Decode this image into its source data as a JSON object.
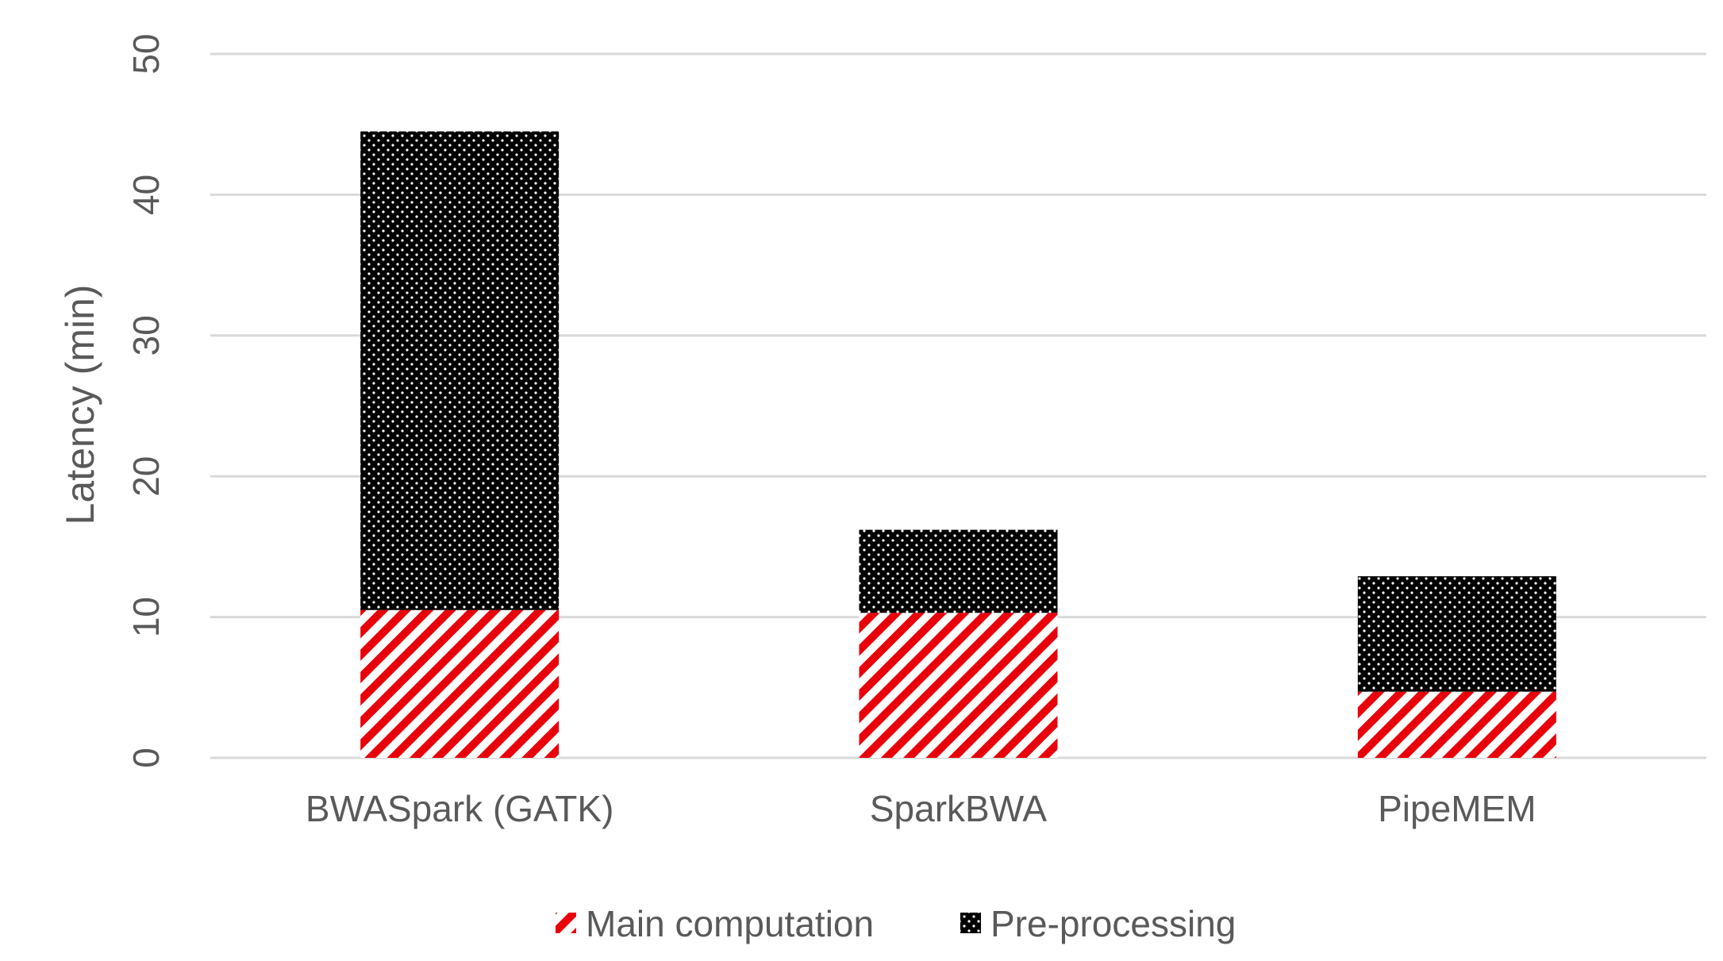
{
  "chart_data": {
    "type": "bar",
    "stacked": true,
    "categories": [
      "BWASpark (GATK)",
      "SparkBWA",
      "PipeMEM"
    ],
    "series": [
      {
        "name": "Main computation",
        "values": [
          10.5,
          10.3,
          4.7
        ],
        "color": "#e8000b",
        "pattern": "diagonal-stripes"
      },
      {
        "name": "Pre-processing",
        "values": [
          34.0,
          5.9,
          8.2
        ],
        "color": "#000000",
        "pattern": "dotted"
      }
    ],
    "title": "",
    "xlabel": "",
    "ylabel": "Latency (min)",
    "ylim": [
      0,
      50
    ],
    "yticks": [
      0,
      10,
      20,
      30,
      40,
      50
    ],
    "grid": true,
    "legend_position": "bottom"
  }
}
